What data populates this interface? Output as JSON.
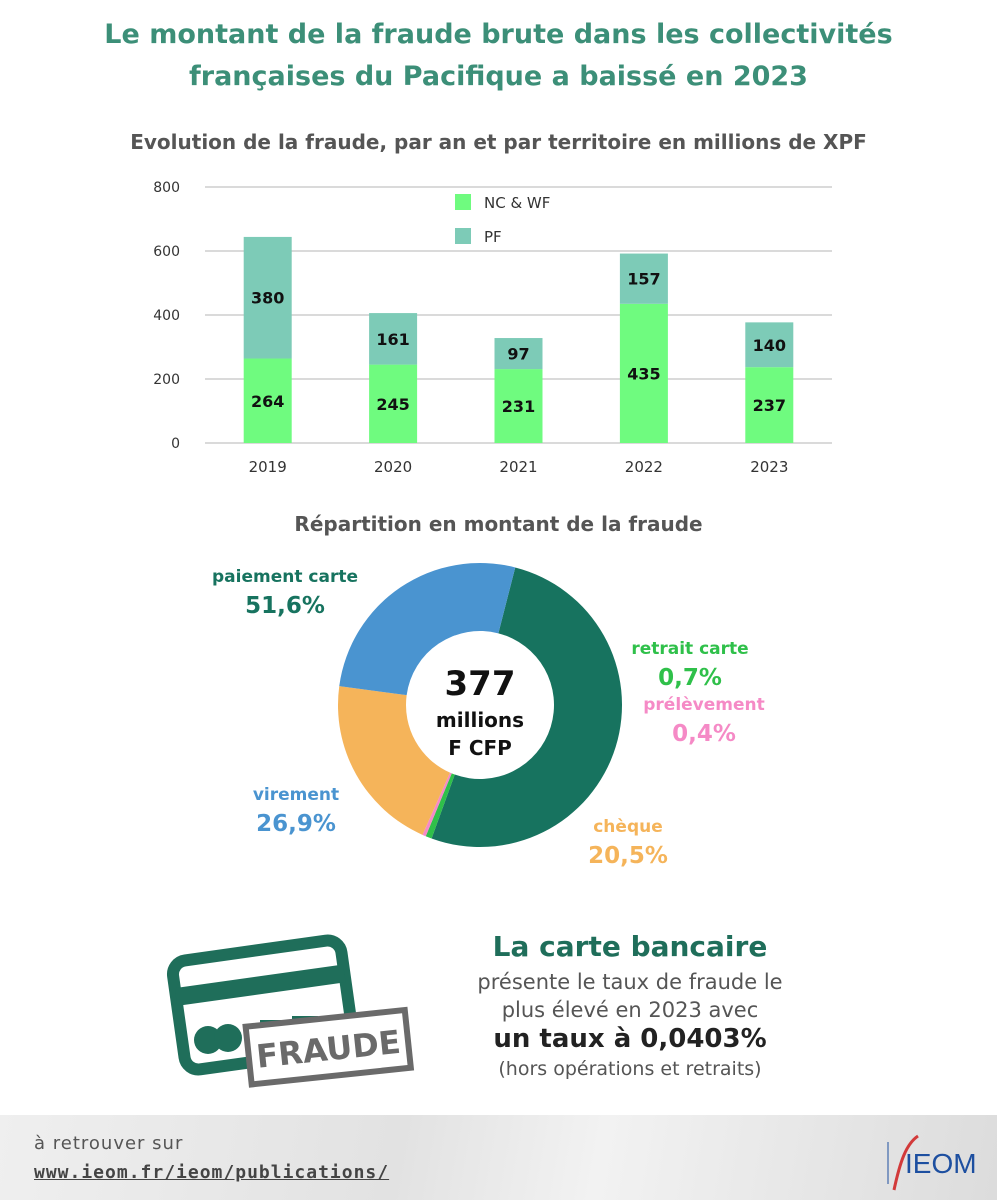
{
  "header": {
    "title_line1": "Le montant de la fraude brute dans les collectivités",
    "title_line2": "françaises du Pacifique a baissé en 2023"
  },
  "chart_data": [
    {
      "type": "bar",
      "stacked": true,
      "title": "Evolution de la fraude, par an et par territoire  en millions de XPF",
      "categories": [
        "2019",
        "2020",
        "2021",
        "2022",
        "2023"
      ],
      "series": [
        {
          "name": "NC & WF",
          "values": [
            264,
            245,
            231,
            435,
            237
          ],
          "color": "#6ffb7f"
        },
        {
          "name": "PF",
          "values": [
            380,
            161,
            97,
            157,
            140
          ],
          "color": "#7dcbb7"
        }
      ],
      "ylim": [
        0,
        800
      ],
      "yticks": [
        "0",
        "200",
        "400",
        "600",
        "800"
      ],
      "grid": true,
      "legend": "top"
    },
    {
      "type": "pie",
      "donut": true,
      "title": "Répartition en montant de la fraude",
      "center_value": "377",
      "center_line2": "millions",
      "center_line3": "F CFP",
      "slices": [
        {
          "label": "paiement carte",
          "value": 51.6,
          "display": "51,6%",
          "color": "#17735f"
        },
        {
          "label": "retrait carte",
          "value": 0.7,
          "display": "0,7%",
          "color": "#2fc04a"
        },
        {
          "label": "prélèvement",
          "value": 0.4,
          "display": "0,4%",
          "color": "#f58ac6"
        },
        {
          "label": "chèque",
          "value": 20.5,
          "display": "20,5%",
          "color": "#f5b45a"
        },
        {
          "label": "virement",
          "value": 26.9,
          "display": "26,9%",
          "color": "#4a94d0"
        }
      ]
    }
  ],
  "callout": {
    "title": "La carte bancaire",
    "body_line1": "présente le taux de fraude le",
    "body_line2": "plus élevé en 2023 avec",
    "rate": "un taux à 0,0403%",
    "note": "(hors opérations et retraits)",
    "stamp": "FRAUDE"
  },
  "footer": {
    "line1": "à retrouver sur",
    "line2": "www.ieom.fr/ieom/publications/",
    "logo": "IEOM"
  }
}
